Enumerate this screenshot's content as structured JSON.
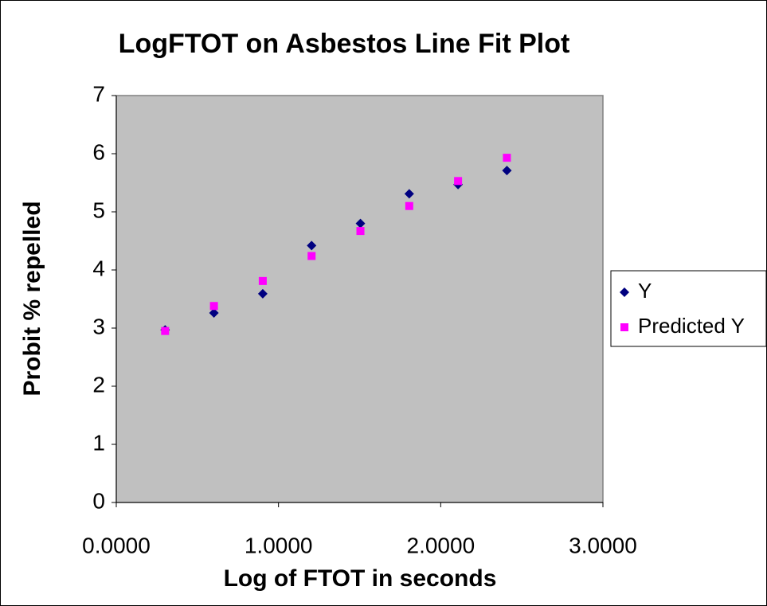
{
  "chart_data": {
    "type": "scatter",
    "title": "LogFTOT on Asbestos Line Fit  Plot",
    "xlabel": "Log of FTOT in seconds",
    "ylabel": "Probit % repelled",
    "x": [
      0.301,
      0.602,
      0.903,
      1.204,
      1.505,
      1.806,
      2.107,
      2.408
    ],
    "series": [
      {
        "name": "Y",
        "color": "#000080",
        "marker": "diamond",
        "values": [
          2.97,
          3.26,
          3.59,
          4.42,
          4.8,
          5.31,
          5.47,
          5.71
        ]
      },
      {
        "name": "Predicted Y",
        "color": "#ff00ff",
        "marker": "square",
        "values": [
          2.95,
          3.38,
          3.81,
          4.24,
          4.67,
          5.1,
          5.53,
          5.93
        ]
      }
    ],
    "xlim": [
      0,
      3
    ],
    "ylim": [
      0,
      7
    ],
    "xticks": [
      {
        "value": 0,
        "label": "0.0000"
      },
      {
        "value": 1,
        "label": "1.0000"
      },
      {
        "value": 2,
        "label": "2.0000"
      },
      {
        "value": 3,
        "label": "3.0000"
      }
    ],
    "yticks": [
      0,
      1,
      2,
      3,
      4,
      5,
      6,
      7
    ],
    "grid": false,
    "plot_background": "#c0c0c0",
    "legend": "right"
  }
}
